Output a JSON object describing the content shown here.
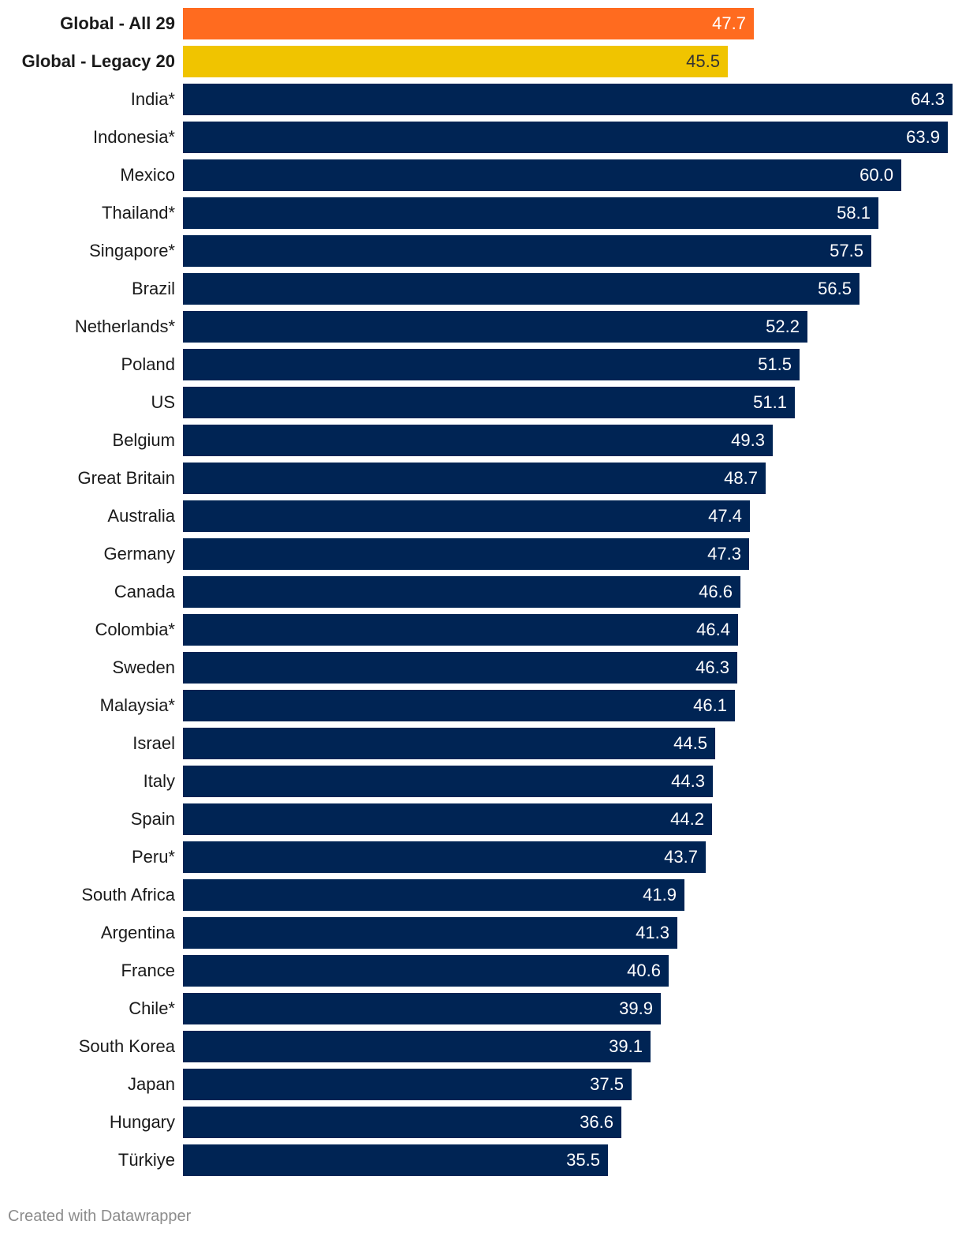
{
  "chart_data": {
    "type": "bar",
    "orientation": "horizontal",
    "title": "",
    "xlabel": "",
    "ylabel": "",
    "xlim": [
      0,
      64.3
    ],
    "grid": false,
    "categories": [
      "Global - All 29",
      "Global - Legacy 20",
      "India*",
      "Indonesia*",
      "Mexico",
      "Thailand*",
      "Singapore*",
      "Brazil",
      "Netherlands*",
      "Poland",
      "US",
      "Belgium",
      "Great Britain",
      "Australia",
      "Germany",
      "Canada",
      "Colombia*",
      "Sweden",
      "Malaysia*",
      "Israel",
      "Italy",
      "Spain",
      "Peru*",
      "South Africa",
      "Argentina",
      "France",
      "Chile*",
      "South Korea",
      "Japan",
      "Hungary",
      "Türkiye"
    ],
    "values": [
      47.7,
      45.5,
      64.3,
      63.9,
      60.0,
      58.1,
      57.5,
      56.5,
      52.2,
      51.5,
      51.1,
      49.3,
      48.7,
      47.4,
      47.3,
      46.6,
      46.4,
      46.3,
      46.1,
      44.5,
      44.3,
      44.2,
      43.7,
      41.9,
      41.3,
      40.6,
      39.9,
      39.1,
      37.5,
      36.6,
      35.5
    ],
    "value_labels": [
      "47.7",
      "45.5",
      "64.3",
      "63.9",
      "60.0",
      "58.1",
      "57.5",
      "56.5",
      "52.2",
      "51.5",
      "51.1",
      "49.3",
      "48.7",
      "47.4",
      "47.3",
      "46.6",
      "46.4",
      "46.3",
      "46.1",
      "44.5",
      "44.3",
      "44.2",
      "43.7",
      "41.9",
      "41.3",
      "40.6",
      "39.9",
      "39.1",
      "37.5",
      "36.6",
      "35.5"
    ],
    "highlighted_categories": [
      "Global - All 29",
      "Global - Legacy 20"
    ],
    "colors": {
      "Global - All 29": "#ff6b1f",
      "Global - Legacy 20": "#f0c400",
      "default": "#002454"
    },
    "value_label_colors": {
      "Global - All 29": "#ffffff",
      "Global - Legacy 20": "#333333",
      "default": "#ffffff"
    }
  },
  "footer": {
    "credit": "Created with Datawrapper"
  }
}
